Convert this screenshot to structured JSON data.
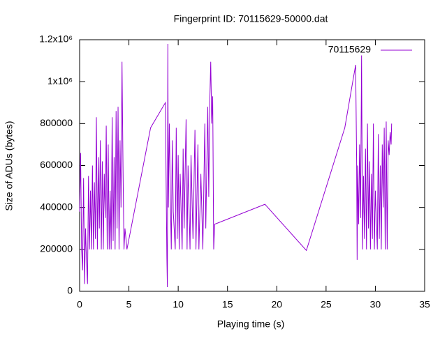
{
  "chart_data": {
    "type": "line",
    "title": "Fingerprint ID: 70115629-50000.dat",
    "x_label": "Playing time (s)",
    "y_label": "Size of ADUs (bytes)",
    "xlim": [
      0,
      35
    ],
    "xticks": [
      0,
      5,
      10,
      15,
      20,
      25,
      30,
      35
    ],
    "ylim": [
      0,
      1200000
    ],
    "yticks": [
      0,
      200000,
      400000,
      600000,
      800000,
      {
        "value": 1000000,
        "label": "1x10⁶"
      },
      {
        "value": 1200000,
        "label": "1.2x10⁶"
      }
    ],
    "legend": "top-right",
    "series": [
      {
        "name": "70115629",
        "color": "#9400d3",
        "x": [
          0,
          0.1,
          0.2,
          0.3,
          0.4,
          0.5,
          0.6,
          0.7,
          0.8,
          0.9,
          1.0,
          1.1,
          1.2,
          1.3,
          1.4,
          1.5,
          1.6,
          1.7,
          1.8,
          1.9,
          2.0,
          2.1,
          2.2,
          2.3,
          2.4,
          2.5,
          2.6,
          2.7,
          2.8,
          2.9,
          3.0,
          3.1,
          3.2,
          3.3,
          3.4,
          3.5,
          3.6,
          3.7,
          3.8,
          3.9,
          4.0,
          4.1,
          4.2,
          4.3,
          4.4,
          4.5,
          4.6,
          4.7,
          4.8,
          7.2,
          8.7,
          8.75,
          8.85,
          8.9,
          8.95,
          9.0,
          9.1,
          9.2,
          9.3,
          9.4,
          9.5,
          9.7,
          9.8,
          9.9,
          10.0,
          10.1,
          10.2,
          10.4,
          10.5,
          10.6,
          10.8,
          10.9,
          11.0,
          11.2,
          11.3,
          11.5,
          11.7,
          11.8,
          12.0,
          12.1,
          12.3,
          12.5,
          12.7,
          12.8,
          13.0,
          13.1,
          13.2,
          13.3,
          13.4,
          13.5,
          13.6,
          13.7,
          18.8,
          23,
          26.9,
          28,
          28.1,
          28.15,
          28.2,
          28.3,
          28.4,
          28.5,
          28.6,
          28.7,
          28.8,
          28.9,
          29.0,
          29.1,
          29.2,
          29.3,
          29.4,
          29.5,
          29.6,
          29.7,
          29.8,
          29.9,
          30.0,
          30.2,
          30.3,
          30.4,
          30.5,
          30.6,
          30.7,
          30.8,
          30.9,
          31.0,
          31.1,
          31.2,
          31.3,
          31.4,
          31.5,
          31.6,
          31.65
        ],
        "values": [
          380000,
          660000,
          200000,
          100000,
          540000,
          35000,
          300000,
          140000,
          35000,
          550000,
          200000,
          480000,
          200000,
          600000,
          200000,
          520000,
          250000,
          830000,
          200000,
          640000,
          300000,
          720000,
          200000,
          620000,
          200000,
          560000,
          350000,
          790000,
          200000,
          700000,
          200000,
          480000,
          200000,
          830000,
          240000,
          640000,
          200000,
          860000,
          300000,
          880000,
          200000,
          720000,
          400000,
          1095000,
          600000,
          200000,
          300000,
          250000,
          200000,
          780000,
          900000,
          650000,
          160000,
          20000,
          1180000,
          400000,
          800000,
          450000,
          200000,
          720000,
          380000,
          200000,
          780000,
          250000,
          650000,
          200000,
          560000,
          200000,
          680000,
          300000,
          820000,
          200000,
          600000,
          200000,
          650000,
          250000,
          770000,
          200000,
          700000,
          200000,
          560000,
          200000,
          800000,
          300000,
          880000,
          450000,
          900000,
          1095000,
          800000,
          930000,
          200000,
          320000,
          415000,
          195000,
          780000,
          1080000,
          620000,
          150000,
          600000,
          320000,
          700000,
          350000,
          1125000,
          200000,
          550000,
          250000,
          680000,
          200000,
          800000,
          300000,
          620000,
          200000,
          560000,
          250000,
          800000,
          200000,
          480000,
          200000,
          750000,
          250000,
          600000,
          200000,
          700000,
          400000,
          780000,
          200000,
          810000,
          200000,
          720000,
          650000,
          760000,
          700000,
          800000
        ]
      }
    ]
  }
}
